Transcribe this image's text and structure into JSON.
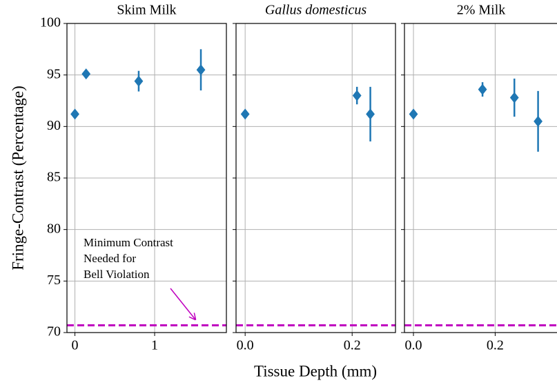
{
  "chart_data": [
    {
      "type": "scatter",
      "title": "Skim Milk",
      "ylabel": "Fringe-Contrast (Percentage)",
      "x": [
        0,
        0.14,
        0.8,
        1.58
      ],
      "values": [
        91.2,
        95.1,
        94.4,
        95.5
      ],
      "errors": [
        0,
        0,
        1.0,
        2.0
      ],
      "color": "#1f77b4",
      "xlim": [
        -0.1,
        1.9
      ],
      "xticks": [
        0,
        1
      ],
      "ylim": [
        70,
        100
      ],
      "yticks": [
        70,
        75,
        80,
        85,
        90,
        95,
        100
      ],
      "grid": true,
      "hline": 70.7,
      "hline_color": "#bf00bf",
      "annotation": [
        "Minimum Contrast",
        "Needed for",
        "Bell Violation"
      ]
    },
    {
      "type": "scatter",
      "title": "Gallus domesticus",
      "xlabel": "Tissue Depth (mm)",
      "x": [
        0,
        0.209,
        0.234
      ],
      "values": [
        91.2,
        93.0,
        91.2
      ],
      "errors": [
        0,
        0.85,
        2.65
      ],
      "color": "#1f77b4",
      "xlim": [
        -0.017,
        0.281
      ],
      "xticks": [
        {
          "value": 0,
          "label": "0.0"
        },
        0.2
      ],
      "ylim": [
        70,
        100
      ],
      "yticks": [
        70,
        75,
        80,
        85,
        90,
        95,
        100
      ],
      "grid": true,
      "hline": 70.7,
      "hline_color": "#bf00bf"
    },
    {
      "type": "scatter",
      "title": "2% Milk",
      "x": [
        0,
        0.169,
        0.247,
        0.305
      ],
      "values": [
        91.2,
        93.6,
        92.8,
        90.5
      ],
      "errors": [
        0,
        0.7,
        1.85,
        2.95
      ],
      "color": "#1f77b4",
      "xlim": [
        -0.022,
        0.353
      ],
      "xticks": [
        {
          "value": 0,
          "label": "0.0"
        },
        0.2
      ],
      "ylim": [
        70,
        100
      ],
      "yticks": [
        70,
        75,
        80,
        85,
        90,
        95,
        100
      ],
      "grid": true,
      "hline": 70.7,
      "hline_color": "#bf00bf"
    }
  ]
}
